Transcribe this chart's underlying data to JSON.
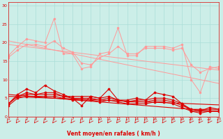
{
  "background_color": "#cceee8",
  "grid_color": "#aaddd8",
  "line_color_light": "#ff9999",
  "line_color_dark": "#dd0000",
  "xlabel": "Vent moyen/en rafales ( km/h )",
  "xlabel_color": "#dd0000",
  "ylabel_ticks": [
    0,
    5,
    10,
    15,
    20,
    25,
    30
  ],
  "xticks": [
    0,
    1,
    2,
    3,
    4,
    5,
    6,
    7,
    8,
    9,
    10,
    11,
    12,
    13,
    14,
    15,
    16,
    17,
    18,
    19,
    20,
    21,
    22,
    23
  ],
  "xlim": [
    0,
    23
  ],
  "ylim": [
    0,
    31
  ],
  "series_light_jagged": [
    [
      16.5,
      19.0,
      21.0,
      20.5,
      20.0,
      26.5,
      17.0,
      17.0,
      13.0,
      13.5,
      17.0,
      17.5,
      24.0,
      16.5,
      16.5,
      19.0,
      19.0,
      19.0,
      18.5,
      19.5,
      10.0,
      6.5,
      13.5,
      13.0
    ]
  ],
  "series_light_smooth": [
    [
      19.5,
      19.2,
      18.9,
      18.6,
      18.3,
      18.0,
      17.7,
      17.4,
      17.1,
      16.8,
      16.5,
      16.2,
      15.9,
      15.6,
      15.3,
      15.0,
      14.7,
      14.4,
      14.1,
      13.8,
      13.5,
      13.2,
      12.9,
      12.6
    ],
    [
      16.0,
      18.0,
      19.5,
      19.5,
      19.0,
      20.5,
      18.5,
      17.5,
      14.5,
      14.0,
      16.0,
      17.0,
      19.0,
      17.0,
      17.0,
      18.5,
      18.5,
      18.5,
      18.0,
      18.5,
      14.0,
      12.0,
      13.0,
      13.5
    ],
    [
      20.5,
      20.0,
      19.5,
      19.0,
      18.5,
      18.0,
      17.5,
      17.0,
      16.5,
      16.0,
      15.5,
      15.0,
      14.5,
      14.0,
      13.5,
      13.0,
      12.5,
      12.0,
      11.5,
      11.0,
      10.5,
      10.0,
      9.5,
      9.0
    ]
  ],
  "series_dark_jagged": [
    [
      3.5,
      6.0,
      7.5,
      6.5,
      8.5,
      7.0,
      6.0,
      5.0,
      3.0,
      5.5,
      5.0,
      7.5,
      4.5,
      4.5,
      5.0,
      4.5,
      6.5,
      6.0,
      5.5,
      3.5,
      1.5,
      1.5,
      2.5,
      2.0
    ]
  ],
  "series_dark_smooth": [
    [
      5.5,
      5.4,
      5.3,
      5.2,
      5.1,
      5.0,
      4.9,
      4.8,
      4.7,
      4.6,
      4.5,
      4.4,
      4.3,
      4.2,
      4.1,
      4.0,
      3.9,
      3.8,
      3.7,
      3.6,
      3.5,
      3.4,
      3.3,
      3.2
    ],
    [
      3.5,
      5.5,
      6.5,
      6.0,
      6.5,
      6.5,
      5.5,
      5.5,
      5.5,
      5.5,
      5.0,
      5.5,
      4.5,
      4.0,
      4.5,
      4.5,
      5.0,
      5.0,
      4.5,
      3.5,
      2.0,
      2.0,
      2.0,
      2.0
    ],
    [
      3.5,
      5.5,
      6.0,
      6.0,
      6.0,
      6.0,
      5.5,
      5.0,
      5.0,
      5.0,
      4.5,
      5.0,
      4.5,
      4.0,
      4.0,
      4.0,
      4.5,
      4.5,
      4.0,
      3.0,
      2.0,
      1.5,
      1.5,
      1.5
    ],
    [
      3.0,
      5.0,
      5.5,
      5.5,
      5.5,
      5.5,
      5.0,
      4.5,
      4.5,
      4.5,
      4.0,
      4.5,
      4.0,
      3.5,
      3.5,
      3.5,
      4.0,
      4.0,
      3.5,
      2.5,
      1.5,
      1.0,
      1.5,
      1.5
    ],
    [
      6.0,
      5.8,
      5.6,
      5.4,
      5.2,
      5.0,
      4.8,
      4.6,
      4.4,
      4.2,
      4.0,
      3.8,
      3.6,
      3.4,
      3.2,
      3.0,
      2.8,
      2.6,
      2.4,
      2.2,
      2.0,
      1.8,
      1.6,
      1.4
    ]
  ],
  "figsize": [
    3.2,
    2.0
  ],
  "dpi": 100
}
